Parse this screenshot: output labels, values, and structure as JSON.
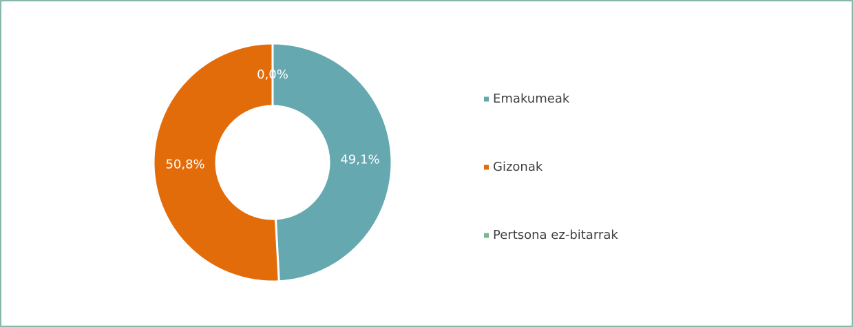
{
  "chart_data": {
    "type": "pie",
    "categories": [
      "Emakumeak",
      "Gizonak",
      "Pertsona ez-bitarrak"
    ],
    "values": [
      49.1,
      50.8,
      0.0
    ],
    "value_labels": [
      "49,1%",
      "50,8%",
      "0,0%"
    ],
    "colors": [
      "#65a8b0",
      "#e36c0a",
      "#79b889"
    ],
    "legend": "right"
  }
}
